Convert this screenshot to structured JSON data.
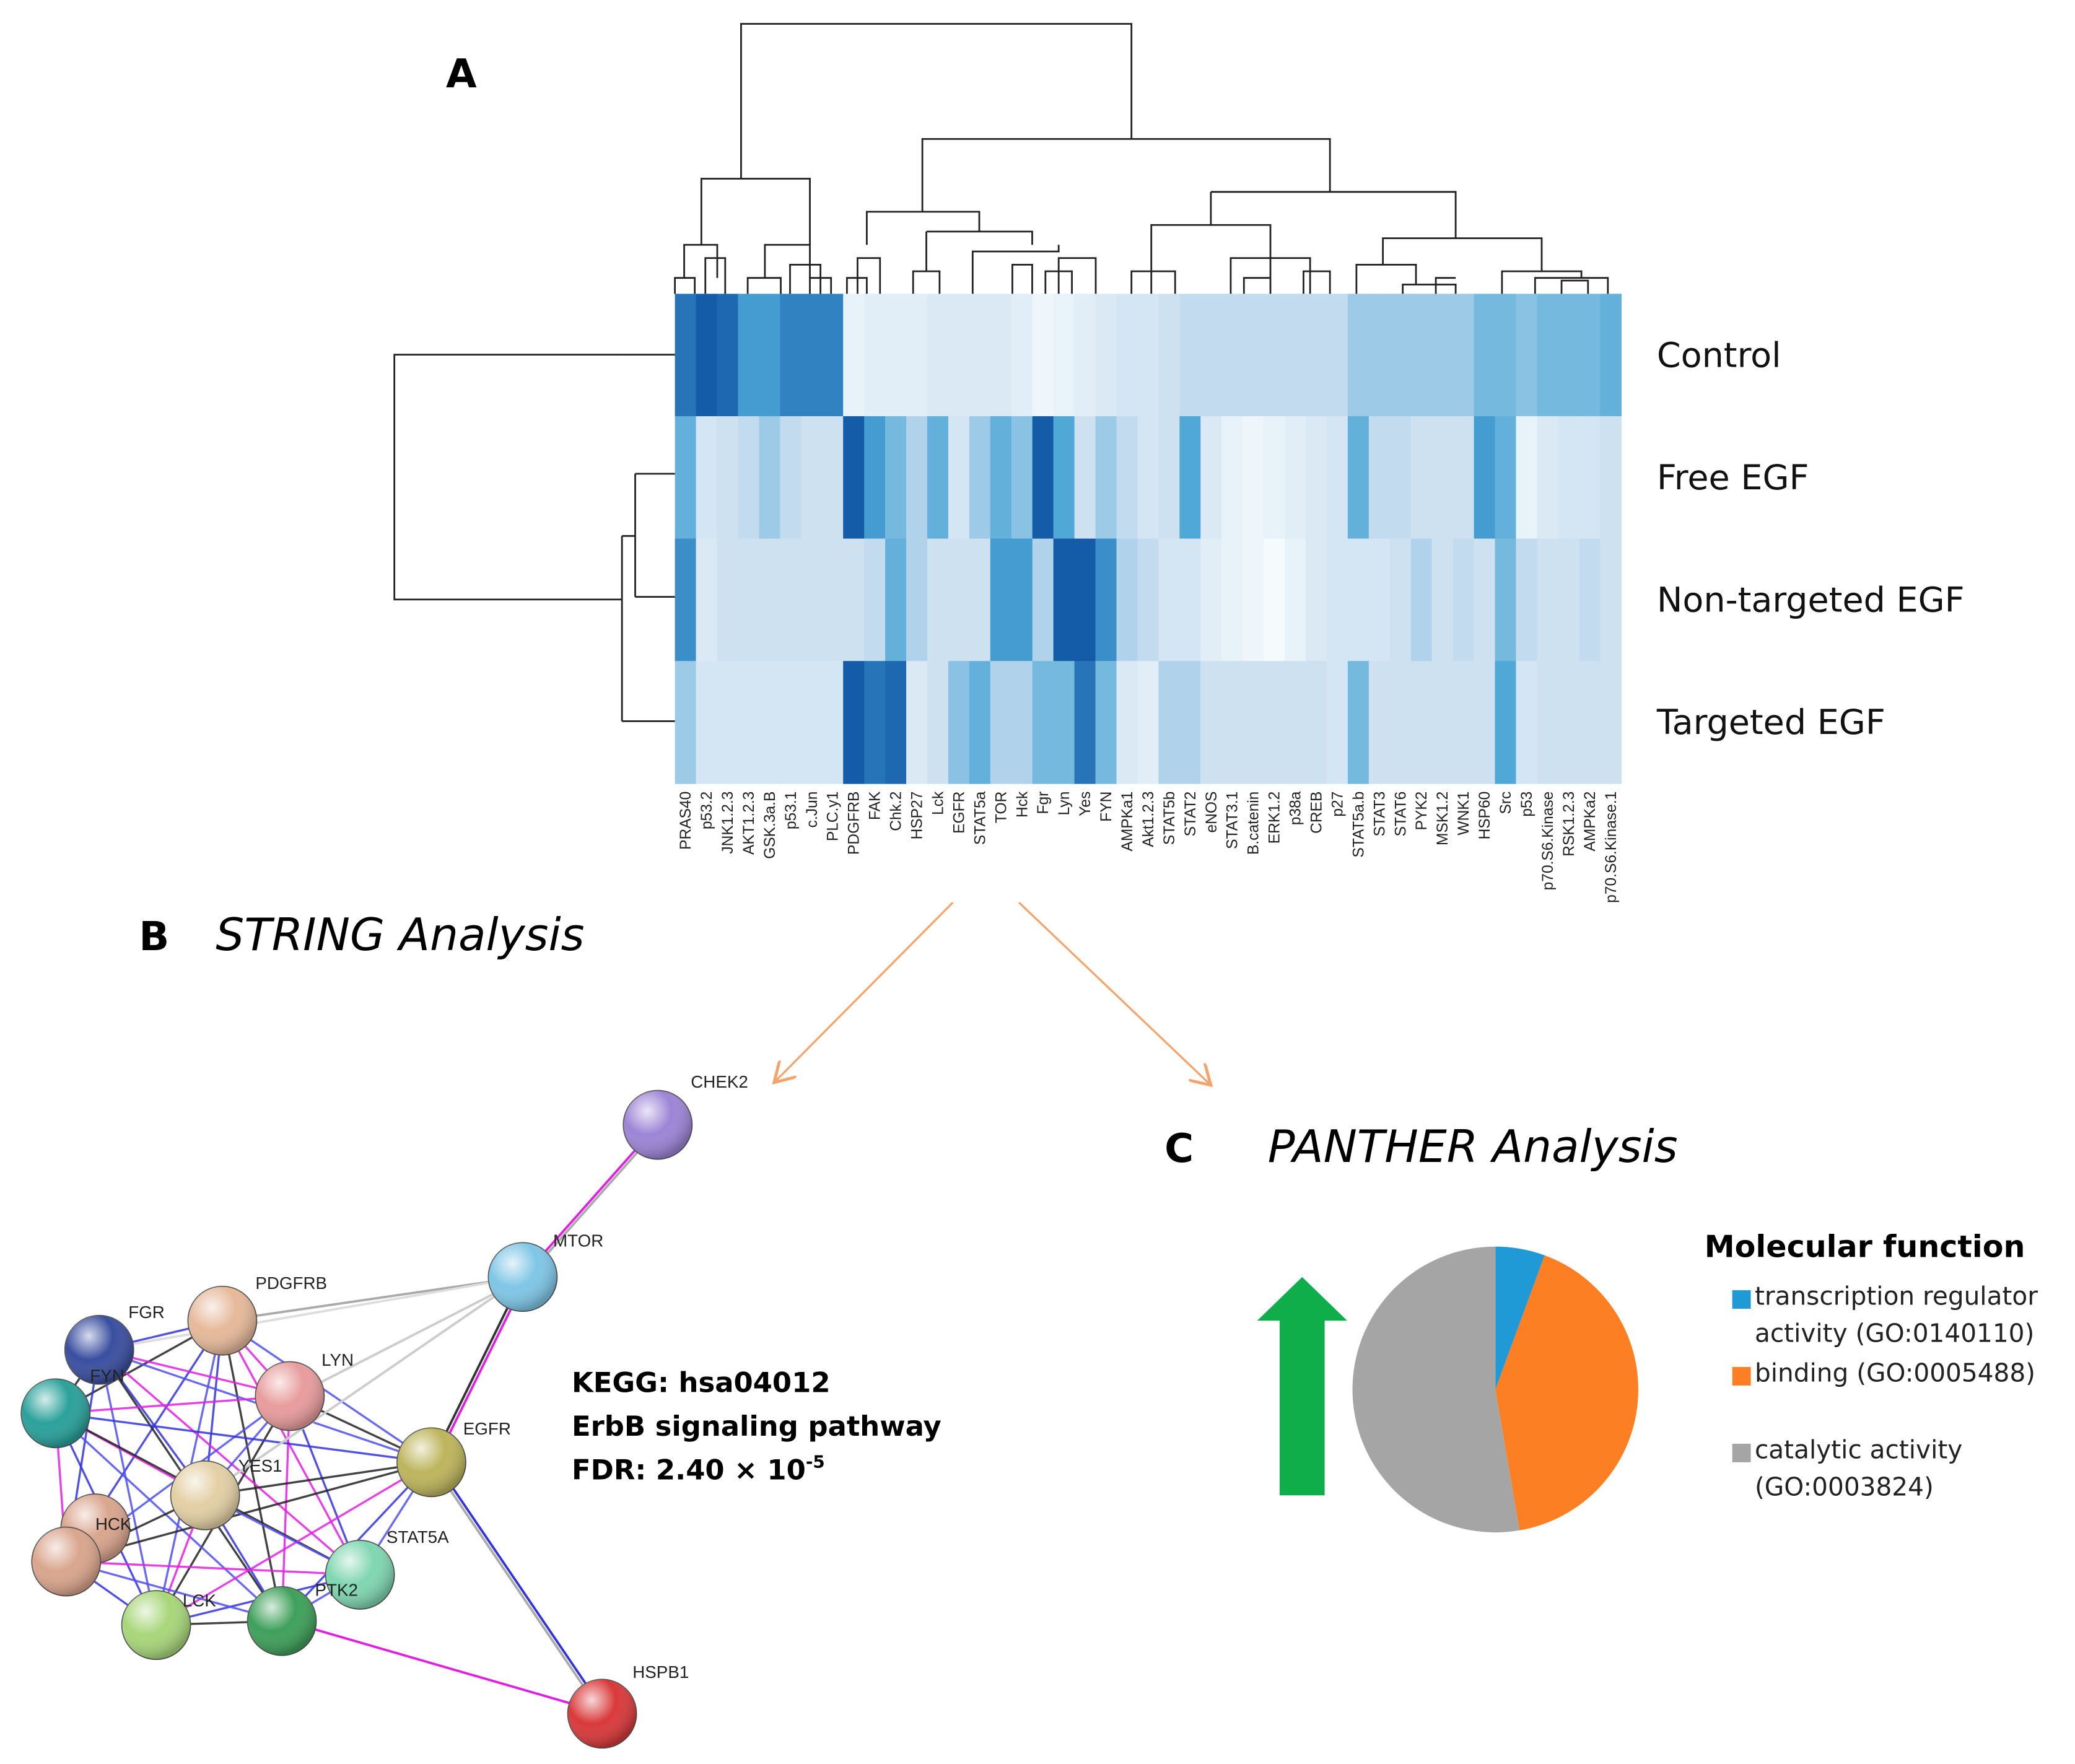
{
  "panels": {
    "a": {
      "label": "A"
    },
    "b": {
      "label": "B",
      "title": "STRING Analysis"
    },
    "c": {
      "label": "C",
      "title": "PANTHER Analysis"
    }
  },
  "chart_data": [
    {
      "type": "heatmap",
      "rows": [
        "Control",
        "Free EGF",
        "Non-targeted EGF",
        "Targeted EGF"
      ],
      "columns": [
        "PRAS40",
        "p53.2",
        "JNK1.2.3",
        "AKT1.2.3",
        "GSK.3a.B",
        "p53.1",
        "c.Jun",
        "PLC.y1",
        "PDGFRB",
        "FAK",
        "Chk.2",
        "HSP27",
        "Lck",
        "EGFR",
        "STAT5a",
        "TOR",
        "Hck",
        "Fgr",
        "Lyn",
        "Yes",
        "FYN",
        "AMPKa1",
        "Akt1.2.3",
        "STAT5b",
        "STAT2",
        "eNOS",
        "STAT3.1",
        "B.catenin",
        "ERK1.2",
        "p38a",
        "CREB",
        "p27",
        "STAT5a.b",
        "STAT3",
        "STAT6",
        "PYK2",
        "MSK1.2",
        "WNK1",
        "HSP60",
        "Src",
        "p53",
        "p70.S6.Kinase",
        "RSK1.2.3",
        "AMPKa2",
        "p70.S6.Kinase.1"
      ],
      "values": [
        [
          0.85,
          0.95,
          0.9,
          0.7,
          0.7,
          0.8,
          0.8,
          0.8,
          0.1,
          0.15,
          0.15,
          0.15,
          0.2,
          0.2,
          0.2,
          0.2,
          0.15,
          0.05,
          0.1,
          0.15,
          0.2,
          0.25,
          0.25,
          0.3,
          0.35,
          0.35,
          0.35,
          0.35,
          0.35,
          0.35,
          0.35,
          0.35,
          0.45,
          0.45,
          0.45,
          0.45,
          0.45,
          0.45,
          0.55,
          0.55,
          0.5,
          0.55,
          0.55,
          0.55,
          0.6
        ],
        [
          0.6,
          0.25,
          0.3,
          0.35,
          0.45,
          0.35,
          0.3,
          0.3,
          0.95,
          0.7,
          0.55,
          0.4,
          0.6,
          0.25,
          0.45,
          0.6,
          0.5,
          0.95,
          0.65,
          0.3,
          0.45,
          0.35,
          0.25,
          0.3,
          0.65,
          0.2,
          0.1,
          0.05,
          0.1,
          0.15,
          0.2,
          0.25,
          0.6,
          0.35,
          0.35,
          0.3,
          0.3,
          0.3,
          0.7,
          0.6,
          0.1,
          0.2,
          0.25,
          0.25,
          0.3
        ],
        [
          0.75,
          0.2,
          0.3,
          0.3,
          0.3,
          0.3,
          0.3,
          0.3,
          0.3,
          0.35,
          0.6,
          0.4,
          0.3,
          0.3,
          0.3,
          0.7,
          0.7,
          0.4,
          0.95,
          0.95,
          0.75,
          0.4,
          0.35,
          0.25,
          0.25,
          0.15,
          0.1,
          0.05,
          0,
          0.1,
          0.2,
          0.25,
          0.25,
          0.25,
          0.3,
          0.4,
          0.3,
          0.35,
          0.3,
          0.55,
          0.35,
          0.3,
          0.3,
          0.35,
          0.3
        ],
        [
          0.45,
          0.25,
          0.25,
          0.25,
          0.25,
          0.25,
          0.25,
          0.25,
          0.95,
          0.85,
          0.9,
          0.2,
          0.3,
          0.5,
          0.6,
          0.4,
          0.4,
          0.55,
          0.55,
          0.85,
          0.55,
          0.2,
          0.15,
          0.4,
          0.4,
          0.3,
          0.3,
          0.3,
          0.3,
          0.3,
          0.3,
          0.25,
          0.55,
          0.3,
          0.3,
          0.3,
          0.3,
          0.3,
          0.3,
          0.65,
          0.25,
          0.3,
          0.3,
          0.3,
          0.3
        ]
      ],
      "zlim": [
        0,
        1
      ],
      "colorscale": [
        "#f5fafd",
        "#c9def0",
        "#4aa5d6",
        "#0a4ea0"
      ]
    },
    {
      "type": "pie",
      "title": "Molecular function",
      "categories": [
        "transcription regulator activity (GO:0140110)",
        "binding (GO:0005488)",
        "catalytic activity (GO:0003824)"
      ],
      "values": [
        5.6,
        41.7,
        52.7
      ],
      "colors": [
        "#1f9ad6",
        "#fd7f23",
        "#a5a5a5"
      ]
    }
  ],
  "network": {
    "nodes": [
      {
        "label": "CHEK2"
      },
      {
        "label": "MTOR"
      },
      {
        "label": "PDGFRB"
      },
      {
        "label": "FGR"
      },
      {
        "label": "LYN"
      },
      {
        "label": "FYN"
      },
      {
        "label": "EGFR"
      },
      {
        "label": "YES1"
      },
      {
        "label": "HCK"
      },
      {
        "label": "STAT5A"
      },
      {
        "label": "PTK2"
      },
      {
        "label": "LCK"
      },
      {
        "label": "HSPB1"
      }
    ],
    "annotation": {
      "lines": [
        "KEGG: hsa04012",
        "ErbB signaling pathway",
        "FDR: 2.40 × 10"
      ],
      "superscript": "-5"
    }
  }
}
